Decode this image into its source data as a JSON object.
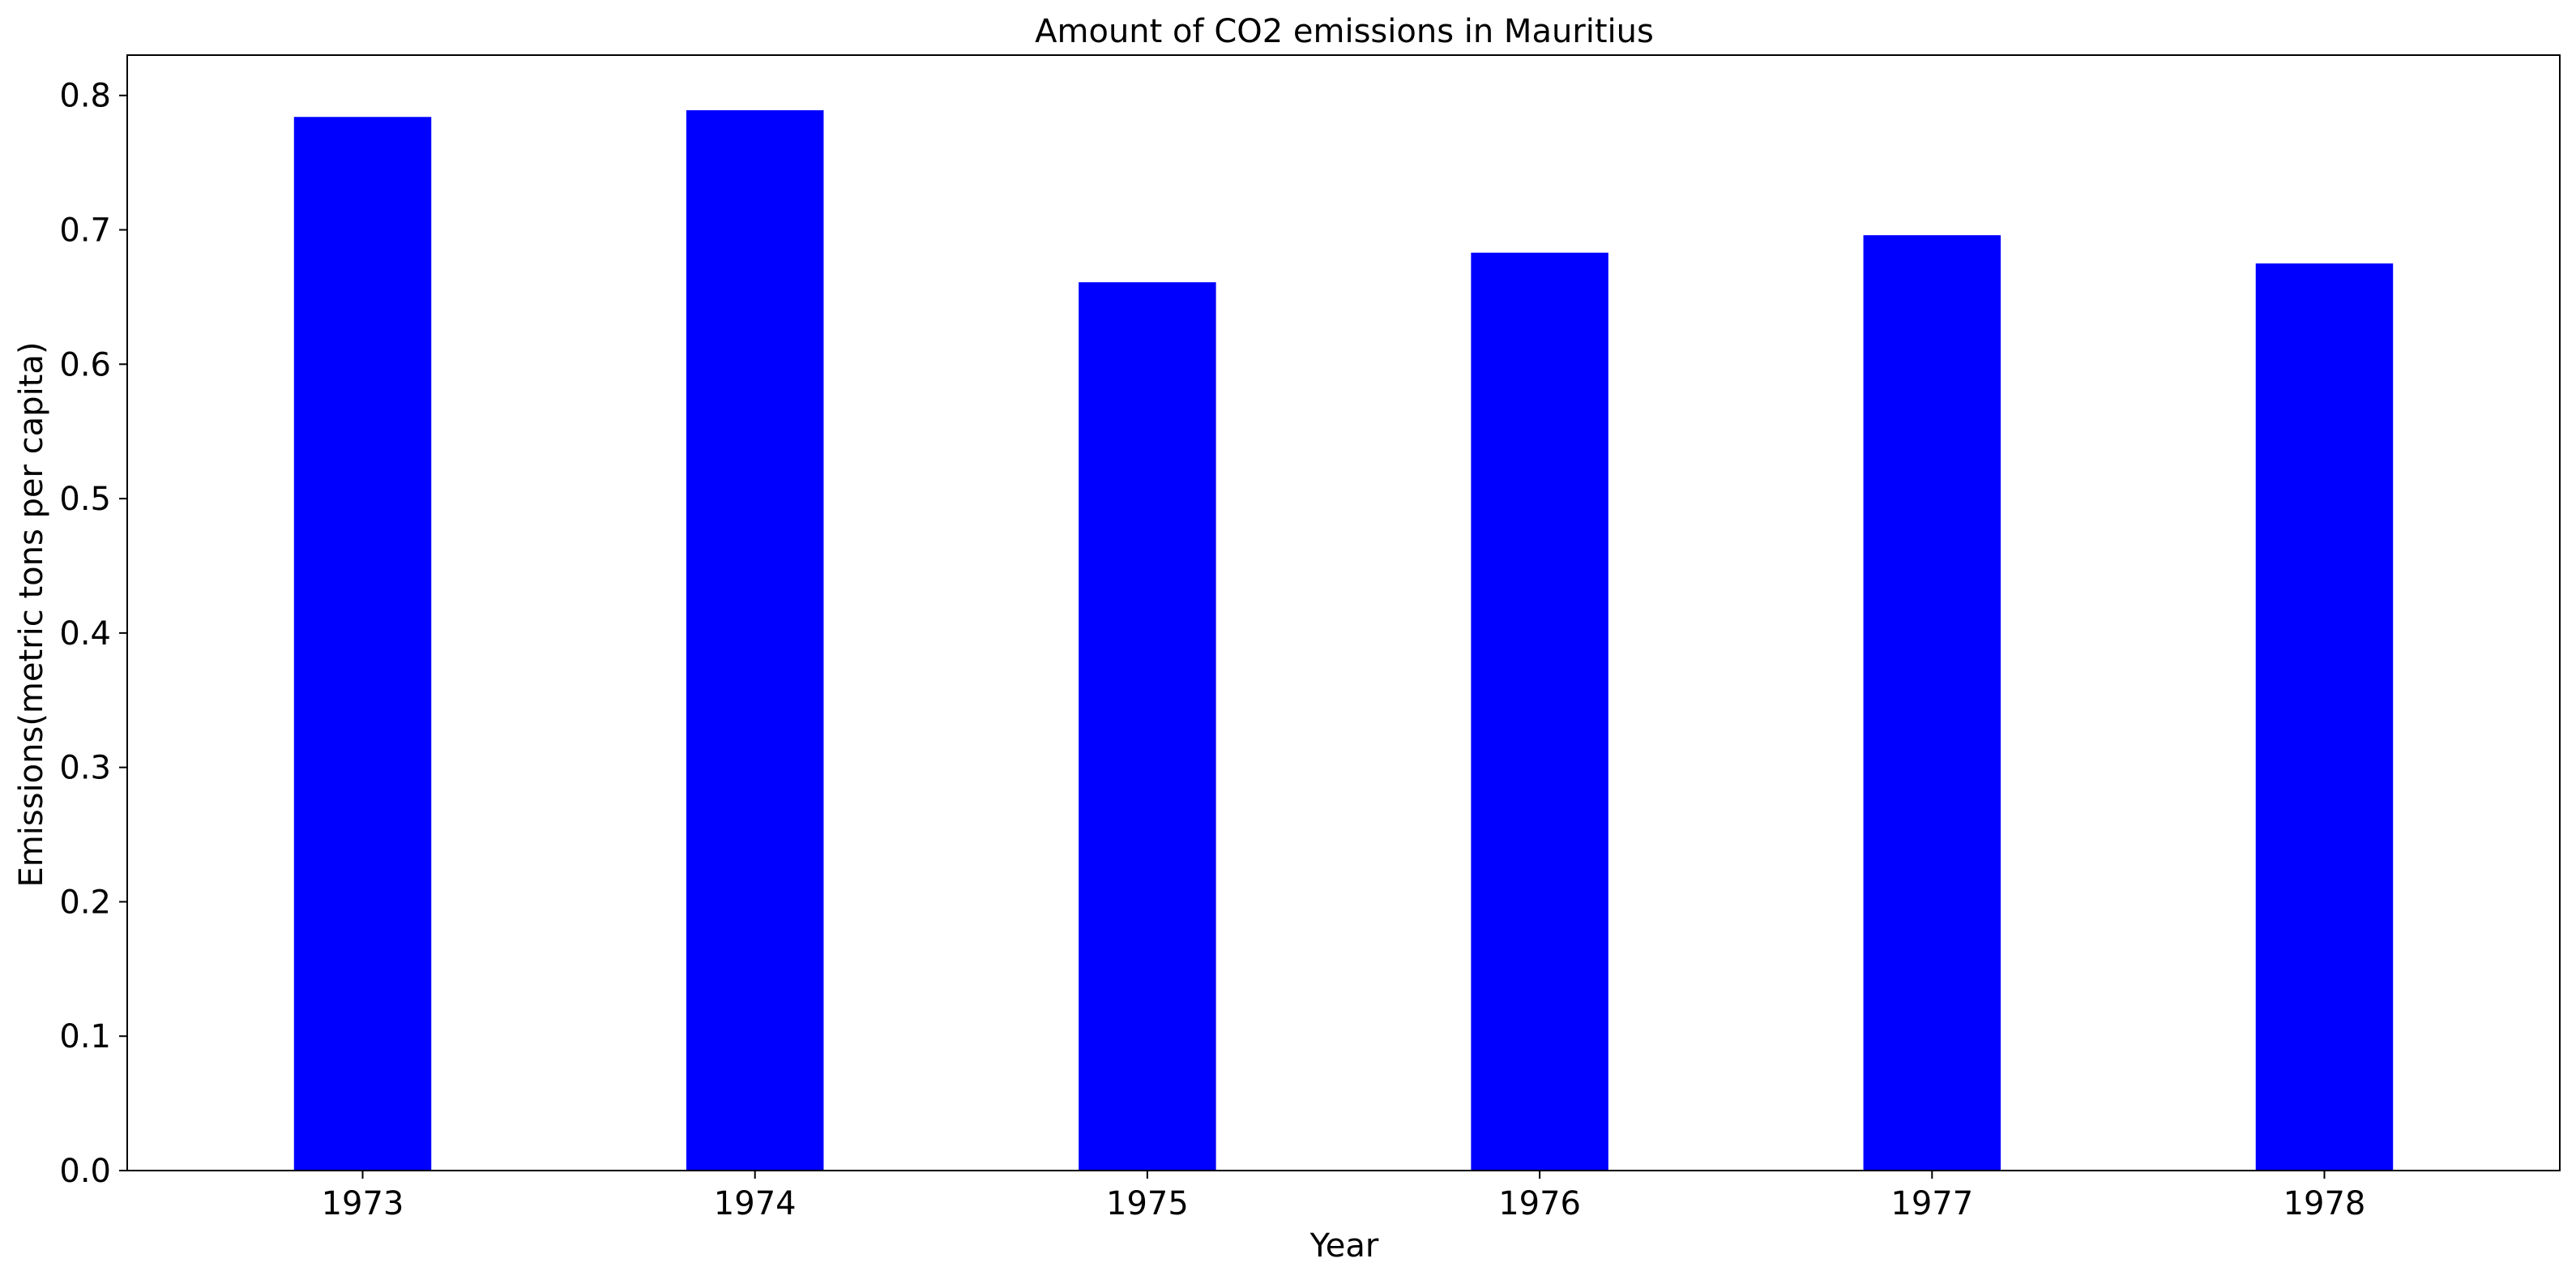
{
  "chart_data": {
    "type": "bar",
    "title": "Amount of CO2 emissions in Mauritius",
    "xlabel": "Year",
    "ylabel": "Emissions(metric tons per capita)",
    "categories": [
      "1973",
      "1974",
      "1975",
      "1976",
      "1977",
      "1978"
    ],
    "values": [
      0.784,
      0.789,
      0.661,
      0.683,
      0.696,
      0.675
    ],
    "ylim": [
      0,
      0.83
    ],
    "yticks": [
      0.0,
      0.1,
      0.2,
      0.3,
      0.4,
      0.5,
      0.6,
      0.7,
      0.8
    ],
    "grid": false,
    "bar_color": "#0000ff"
  }
}
